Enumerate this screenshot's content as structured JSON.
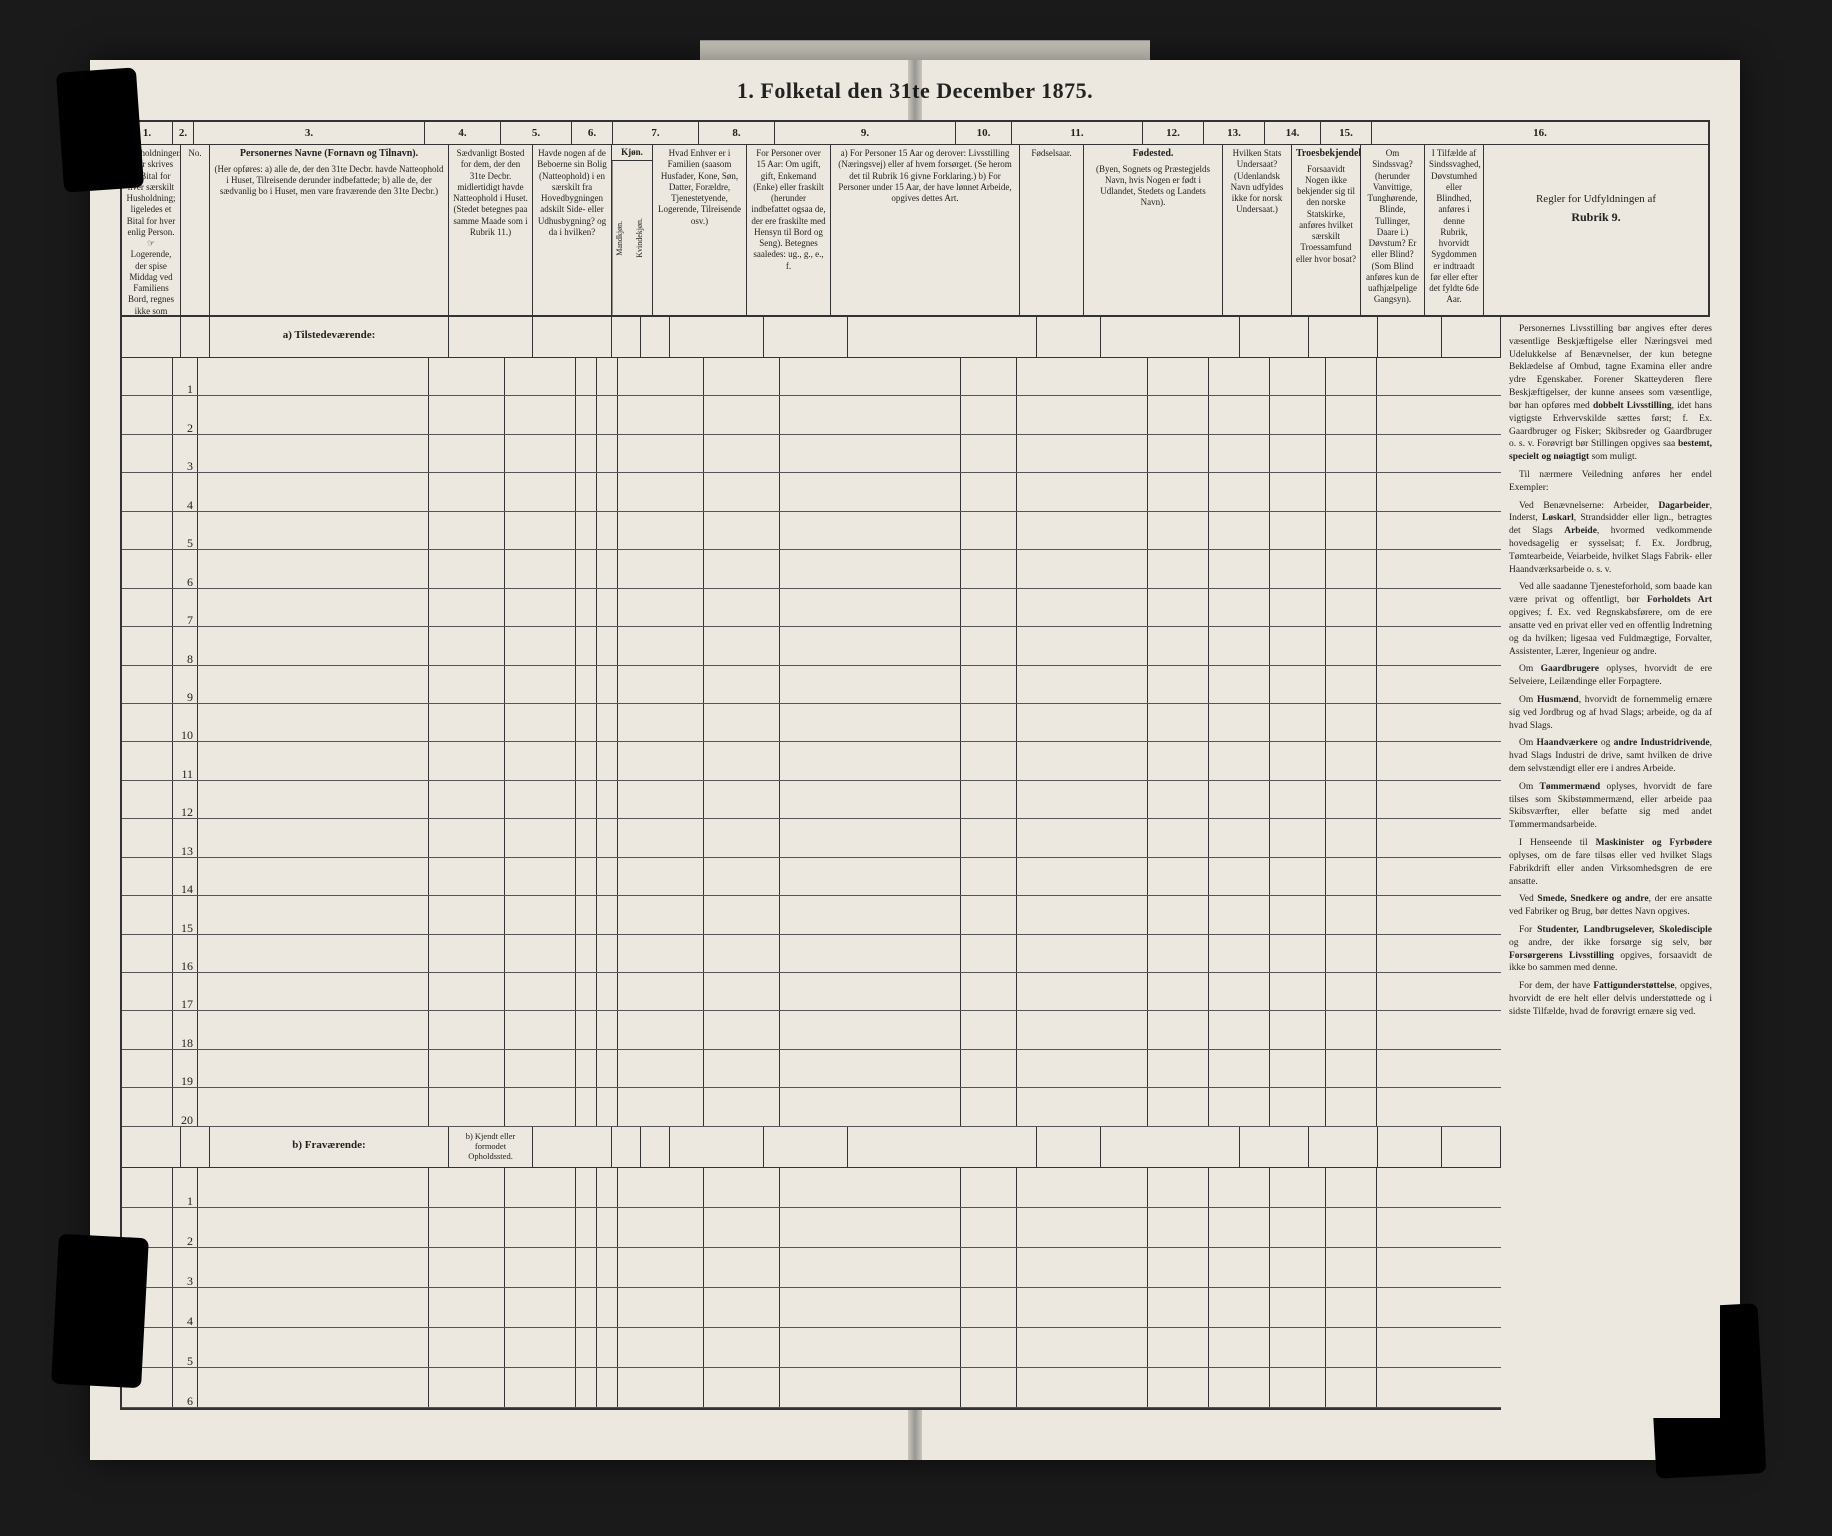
{
  "title": "1.  Folketal den 31te December 1875.",
  "columns": {
    "nums": [
      "1.",
      "2.",
      "3.",
      "4.",
      "5.",
      "6.",
      "7.",
      "8.",
      "9.",
      "10.",
      "11.",
      "12.",
      "13.",
      "14.",
      "15.",
      "16."
    ],
    "h1": "Husholdninger.\n(Her skrives et Bital for hver særskilt Husholdning; ligeledes et Bital for hver enlig Person.\n☞ Logerende, der spise Middag ved Familiens Bord, regnes ikke som enlige).",
    "h2": "No.",
    "h3_title": "Personernes Navne (Fornavn og Tilnavn).",
    "h3_body": "(Her opføres:\na) alle de, der den 31te Decbr. havde Natteophold i Huset, Tilreisende derunder indbefattede;\nb) alle de, der sædvanlig bo i Huset, men vare fraværende den 31te Decbr.)",
    "h4": "Sædvanligt Bosted for dem, der den 31te Decbr. midlertidigt havde Natteophold i Huset. (Stedet betegnes paa samme Maade som i Rubrik 11.)",
    "h5": "Havde nogen af de Beboerne sin Bolig (Natteophold) i en særskilt fra Hovedbygningen adskilt Side- eller Udhusbygning? og da i hvilken?",
    "h6_title": "Kjøn.",
    "h6a": "Mandkjøn.",
    "h6b": "Kvindekjøn.",
    "h7": "Hvad Enhver er i Familien (saasom Husfader, Kone, Søn, Datter, Forældre, Tjenestetyende, Logerende, Tilreisende osv.)",
    "h8": "For Personer over 15 Aar: Om ugift, gift, Enkemand (Enke) eller fraskilt (herunder indbefattet ogsaa de, der ere fraskilte med Hensyn til Bord og Seng). Betegnes saaledes: ug., g., e., f.",
    "h9": "a) For Personer 15 Aar og derover: Livsstilling (Næringsvej) eller af hvem forsørget. (Se herom det til Rubrik 16 givne Forklaring.)\nb) For Personer under 15 Aar, der have lønnet Arbeide, opgives dettes Art.",
    "h10": "Fødselsaar.",
    "h11_title": "Fødested.",
    "h11_body": "(Byen, Sognets og Præstegjelds Navn, hvis Nogen er født i Udlandet, Stedets og Landets Navn).",
    "h12": "Hvilken Stats Undersaat? (Udenlandsk Navn udfyldes ikke for norsk Undersaat.)",
    "h13_title": "Troesbekjendelse.",
    "h13_body": "Forsaavidt Nogen ikke bekjender sig til den norske Statskirke, anføres hvilket særskilt Troessamfund eller hvor bosat?",
    "h14": "Om Sindssvag? (herunder Vanvittige, Tunghørende, Blinde, Tullinger, Daare i.)  Døvstum? Er eller Blind? (Som Blind anføres kun de uafhjælpelige Gangsyn).",
    "h15": "I Tilfælde af Sindssvaghed, Døvstumhed eller Blindhed, anføres i denne Rubrik, hvorvidt Sygdommen er indtraadt før eller efter det fyldte 6de Aar.",
    "h16_title": "Regler for Udfyldningen af",
    "h16_sub": "Rubrik 9."
  },
  "sections": {
    "a_label": "a) Tilstedeværende:",
    "b_label": "b) Fraværende:",
    "b_col4": "b) Kjendt eller formodet Opholdssted."
  },
  "rows_a": [
    1,
    2,
    3,
    4,
    5,
    6,
    7,
    8,
    9,
    10,
    11,
    12,
    13,
    14,
    15,
    16,
    17,
    18,
    19,
    20
  ],
  "rows_b": [
    1,
    2,
    3,
    4,
    5,
    6
  ],
  "instructions": [
    "Personernes Livsstilling bør angives efter deres væsentlige Beskjæftigelse eller Næringsvei med Udelukkelse af Benævnelser, der kun betegne Beklædelse af Ombud, tagne Examina eller andre ydre Egenskaber. Forener Skatteyderen flere Beskjæftigelser, der kunne ansees som væsentlige, bør han opføres med <b>dobbelt Livsstilling</b>, idet hans vigtigste Erhvervskilde sættes først; f. Ex. Gaardbruger og Fisker; Skibsreder og Gaardbruger o. s. v. Forøvrigt bør Stillingen opgives saa <b>bestemt, specielt og nøiagtigt</b> som muligt.",
    "Til nærmere Veiledning anføres her endel Exempler:",
    "Ved Benævnelserne: Arbeider, <b>Dagarbeider</b>, Inderst, <b>Løskarl</b>, Strandsidder eller lign., betragtes det Slags <b>Arbeide</b>, hvormed vedkommende hovedsagelig er sysselsat; f. Ex. Jordbrug, Tømtearbeide, Veiarbeide, hvilket Slags Fabrik- eller Haandværksarbeide o. s. v.",
    "Ved alle saadanne Tjenesteforhold, som baade kan være privat og offentligt, bør <b>Forholdets Art</b> opgives; f. Ex. ved Regnskabsførere, om de ere ansatte ved en privat eller ved en offentlig Indretning og da hvilken; ligesaa ved Fuldmægtige, Forvalter, Assistenter, Lærer, Ingenieur og andre.",
    "Om <b>Gaardbrugere</b> oplyses, hvorvidt de ere Selveiere, Leilændinge eller Forpagtere.",
    "Om <b>Husmænd</b>, hvorvidt de fornemmelig ernære sig ved Jordbrug og af hvad Slags; arbeide, og da af hvad Slags.",
    "Om <b>Haandværkere</b> og <b>andre Industridrivende</b>, hvad Slags Industri de drive, samt hvilken de drive dem selvstændigt eller ere i andres Arbeide.",
    "Om <b>Tømmermænd</b> oplyses, hvorvidt de fare tilses som Skibstømmermænd, eller arbeide paa Skibsværfter, eller befatte sig med andet Tømmermandsarbeide.",
    "I Henseende til <b>Maskinister og Fyrbødere</b> oplyses, om de fare tilsøs eller ved hvilket Slags Fabrikdrift eller anden Virksomhedsgren de ere ansatte.",
    "Ved <b>Smede, Snedkere og andre</b>, der ere ansatte ved Fabriker og Brug, bør dettes Navn opgives.",
    "For <b>Studenter, Landbrugselever, Skoledisciple</b> og andre, der ikke forsørge sig selv, bør <b>Forsørgerens Livsstilling</b> opgives, forsaavidt de ikke bo sammen med denne.",
    "For dem, der have <b>Fattigunderstøttelse</b>, opgives, hvorvidt de ere helt eller delvis understøttede og i sidste Tilfælde, hvad de forøvrigt ernære sig ved."
  ],
  "colors": {
    "paper": "#ece8df",
    "ink": "#222222",
    "rule": "#333333",
    "bg": "#1a1a1a"
  }
}
